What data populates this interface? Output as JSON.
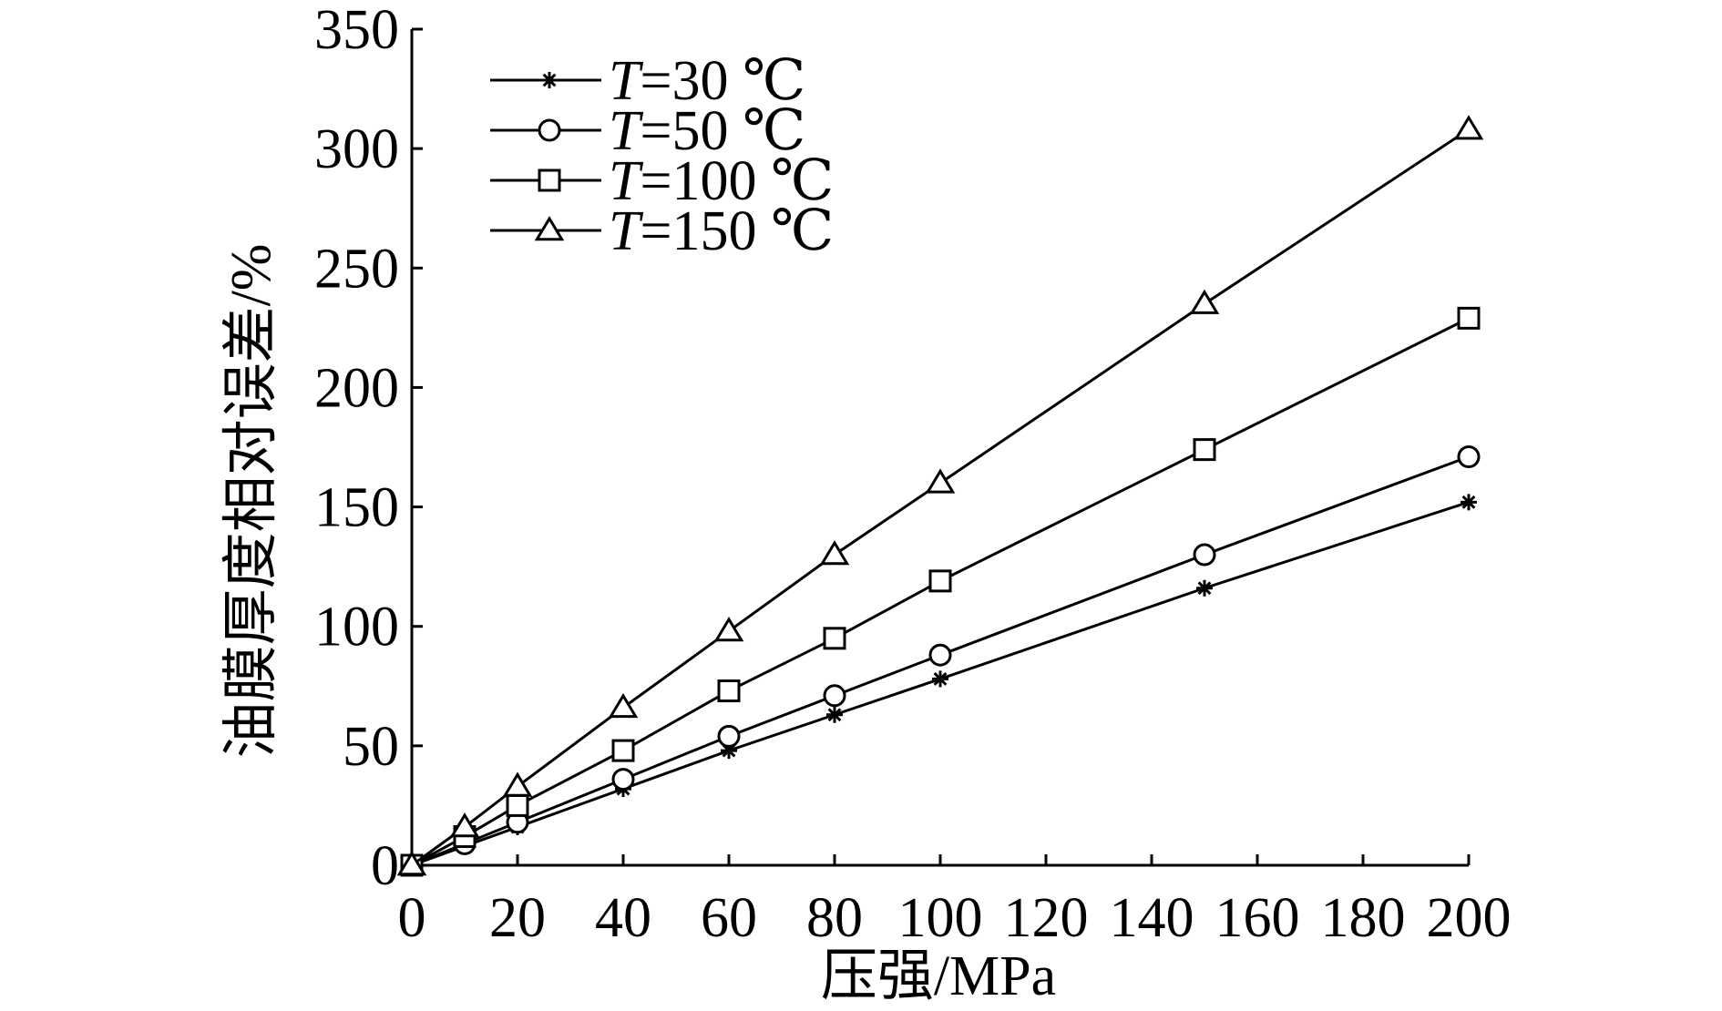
{
  "chart_data": {
    "type": "line",
    "xlabel": "压强/MPa",
    "ylabel": "油膜厚度相对误差/%",
    "xlim": [
      0,
      200
    ],
    "ylim": [
      0,
      350
    ],
    "xticks": [
      0,
      20,
      40,
      60,
      80,
      100,
      120,
      140,
      160,
      180,
      200
    ],
    "yticks": [
      0,
      50,
      100,
      150,
      200,
      250,
      300,
      350
    ],
    "legend_position": "top-left",
    "grid": false,
    "series": [
      {
        "name_var": "T",
        "name_rest": "=30 ℃",
        "marker": "star",
        "x": [
          0,
          10,
          20,
          40,
          60,
          80,
          100,
          150,
          200
        ],
        "y": [
          0,
          8,
          16,
          32,
          48,
          63,
          78,
          116,
          152
        ]
      },
      {
        "name_var": "T",
        "name_rest": "=50 ℃",
        "marker": "circle",
        "x": [
          0,
          10,
          20,
          40,
          60,
          80,
          100,
          150,
          200
        ],
        "y": [
          0,
          9,
          18,
          36,
          54,
          71,
          88,
          130,
          171
        ]
      },
      {
        "name_var": "T",
        "name_rest": "=100 ℃",
        "marker": "square",
        "x": [
          0,
          10,
          20,
          40,
          60,
          80,
          100,
          150,
          200
        ],
        "y": [
          0,
          12,
          25,
          48,
          73,
          95,
          119,
          174,
          229
        ]
      },
      {
        "name_var": "T",
        "name_rest": "=150 ℃",
        "marker": "triangle",
        "x": [
          0,
          10,
          20,
          40,
          60,
          80,
          100,
          150,
          200
        ],
        "y": [
          0,
          16,
          33,
          66,
          98,
          130,
          160,
          235,
          308
        ]
      }
    ]
  }
}
